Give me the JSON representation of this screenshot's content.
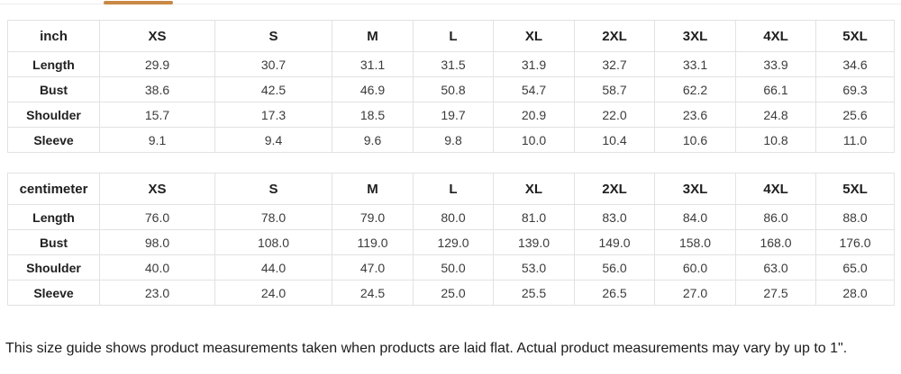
{
  "tabs": {
    "active_indicator_color": "#c98845"
  },
  "size_guide": {
    "tables": [
      {
        "unit_label": "inch",
        "columns": [
          "XS",
          "S",
          "M",
          "L",
          "XL",
          "2XL",
          "3XL",
          "4XL",
          "5XL"
        ],
        "rows": [
          {
            "label": "Length",
            "values": [
              "29.9",
              "30.7",
              "31.1",
              "31.5",
              "31.9",
              "32.7",
              "33.1",
              "33.9",
              "34.6"
            ]
          },
          {
            "label": "Bust",
            "values": [
              "38.6",
              "42.5",
              "46.9",
              "50.8",
              "54.7",
              "58.7",
              "62.2",
              "66.1",
              "69.3"
            ]
          },
          {
            "label": "Shoulder",
            "values": [
              "15.7",
              "17.3",
              "18.5",
              "19.7",
              "20.9",
              "22.0",
              "23.6",
              "24.8",
              "25.6"
            ]
          },
          {
            "label": "Sleeve",
            "values": [
              "9.1",
              "9.4",
              "9.6",
              "9.8",
              "10.0",
              "10.4",
              "10.6",
              "10.8",
              "11.0"
            ]
          }
        ]
      },
      {
        "unit_label": "centimeter",
        "columns": [
          "XS",
          "S",
          "M",
          "L",
          "XL",
          "2XL",
          "3XL",
          "4XL",
          "5XL"
        ],
        "rows": [
          {
            "label": "Length",
            "values": [
              "76.0",
              "78.0",
              "79.0",
              "80.0",
              "81.0",
              "83.0",
              "84.0",
              "86.0",
              "88.0"
            ]
          },
          {
            "label": "Bust",
            "values": [
              "98.0",
              "108.0",
              "119.0",
              "129.0",
              "139.0",
              "149.0",
              "158.0",
              "168.0",
              "176.0"
            ]
          },
          {
            "label": "Shoulder",
            "values": [
              "40.0",
              "44.0",
              "47.0",
              "50.0",
              "53.0",
              "56.0",
              "60.0",
              "63.0",
              "65.0"
            ]
          },
          {
            "label": "Sleeve",
            "values": [
              "23.0",
              "24.0",
              "24.5",
              "25.0",
              "25.5",
              "26.5",
              "27.0",
              "27.5",
              "28.0"
            ]
          }
        ]
      }
    ],
    "note": "This size guide shows product measurements taken when products are laid flat. Actual product measurements may vary by up to 1\"."
  }
}
